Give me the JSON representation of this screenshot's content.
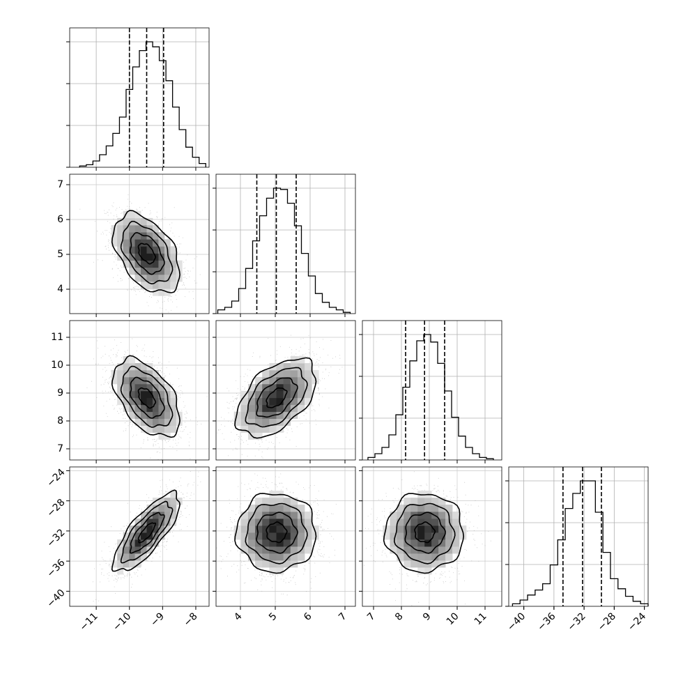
{
  "chart_data": {
    "type": "corner",
    "title": "",
    "parameters": [
      {
        "id": "p0",
        "range": [
          -11.8,
          -7.6
        ],
        "ticks": [
          -11,
          -10,
          -9,
          -8
        ],
        "tick_labels": [
          "−11",
          "−10",
          "−9",
          "−8"
        ],
        "quantiles": [
          -10.0,
          -9.48,
          -8.97
        ],
        "mean": -9.48,
        "sd": 0.5
      },
      {
        "id": "p1",
        "range": [
          3.3,
          7.3
        ],
        "ticks": [
          4,
          5,
          6,
          7
        ],
        "tick_labels": [
          "4",
          "5",
          "6",
          "7"
        ],
        "quantiles": [
          4.47,
          5.03,
          5.6
        ],
        "mean": 5.03,
        "sd": 0.57
      },
      {
        "id": "p2",
        "range": [
          6.6,
          11.6
        ],
        "ticks": [
          7,
          8,
          9,
          10,
          11
        ],
        "tick_labels": [
          "7",
          "8",
          "9",
          "10",
          "11"
        ],
        "quantiles": [
          8.15,
          8.83,
          9.55
        ],
        "mean": 8.83,
        "sd": 0.7
      },
      {
        "id": "p3",
        "range": [
          -42.0,
          -23.5
        ],
        "ticks": [
          -40,
          -36,
          -32,
          -28,
          -24
        ],
        "tick_labels": [
          "−40",
          "−36",
          "−32",
          "−28",
          "−24"
        ],
        "quantiles": [
          -34.8,
          -32.2,
          -29.7
        ],
        "mean": -32.2,
        "sd": 2.6
      }
    ],
    "correlations": [
      {
        "pair": [
          "p0",
          "p1"
        ],
        "rho": -0.45
      },
      {
        "pair": [
          "p0",
          "p2"
        ],
        "rho": -0.5
      },
      {
        "pair": [
          "p1",
          "p2"
        ],
        "rho": 0.5
      },
      {
        "pair": [
          "p0",
          "p3"
        ],
        "rho": 0.78
      },
      {
        "pair": [
          "p1",
          "p3"
        ],
        "rho": 0.0
      },
      {
        "pair": [
          "p2",
          "p3"
        ],
        "rho": 0.0
      }
    ],
    "histograms": [
      {
        "param": "p0",
        "bin_edges": [
          -11.5,
          -11.3,
          -11.1,
          -10.9,
          -10.7,
          -10.5,
          -10.3,
          -10.1,
          -9.9,
          -9.7,
          -9.5,
          -9.3,
          -9.1,
          -8.9,
          -8.7,
          -8.5,
          -8.3,
          -8.1,
          -7.9,
          -7.7
        ],
        "counts": [
          1,
          2,
          5,
          10,
          17,
          27,
          40,
          62,
          80,
          93,
          100,
          96,
          85,
          69,
          48,
          30,
          16,
          8,
          3
        ]
      },
      {
        "param": "p1",
        "bin_edges": [
          3.35,
          3.55,
          3.75,
          3.95,
          4.15,
          4.35,
          4.55,
          4.75,
          4.95,
          5.15,
          5.35,
          5.55,
          5.75,
          5.95,
          6.15,
          6.35,
          6.55,
          6.75,
          6.95,
          7.15
        ],
        "counts": [
          3,
          5,
          10,
          20,
          36,
          58,
          78,
          92,
          100,
          99,
          88,
          70,
          48,
          30,
          16,
          9,
          5,
          3,
          1
        ]
      },
      {
        "param": "p2",
        "bin_edges": [
          6.8,
          7.05,
          7.3,
          7.55,
          7.8,
          8.05,
          8.3,
          8.55,
          8.8,
          9.05,
          9.3,
          9.55,
          9.8,
          10.05,
          10.3,
          10.55,
          10.8,
          11.05,
          11.3
        ],
        "counts": [
          2,
          5,
          10,
          20,
          36,
          58,
          79,
          95,
          100,
          94,
          77,
          55,
          34,
          19,
          10,
          5,
          2,
          1
        ]
      },
      {
        "param": "p3",
        "bin_edges": [
          -41.5,
          -40.5,
          -39.5,
          -38.5,
          -37.5,
          -36.5,
          -35.5,
          -34.5,
          -33.5,
          -32.5,
          -31.5,
          -30.5,
          -29.5,
          -28.5,
          -27.5,
          -26.5,
          -25.5,
          -24.5,
          -23.5
        ],
        "counts": [
          2,
          5,
          9,
          13,
          18,
          33,
          53,
          78,
          90,
          100,
          100,
          75,
          43,
          22,
          14,
          8,
          4,
          2
        ]
      }
    ],
    "contour_levels_sigma": [
      0.5,
      1.0,
      1.5,
      2.0
    ],
    "grid": true,
    "legend": "none"
  }
}
